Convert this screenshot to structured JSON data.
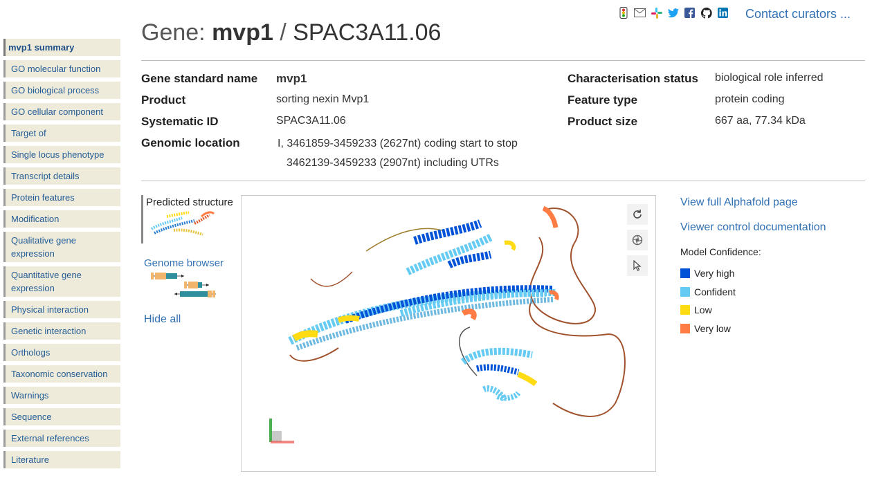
{
  "header": {
    "contact_label": "Contact curators ...",
    "social_icons": [
      "traffic-light-icon",
      "email-icon",
      "slack-icon",
      "twitter-icon",
      "facebook-icon",
      "github-icon",
      "linkedin-icon"
    ]
  },
  "title": {
    "prefix": "Gene: ",
    "gene_name": "mvp1",
    "separator": " / ",
    "systematic_id": "SPAC3A11.06"
  },
  "sidebar": {
    "items": [
      {
        "label": "mvp1 summary",
        "active": true
      },
      {
        "label": "GO molecular function"
      },
      {
        "label": "GO biological process"
      },
      {
        "label": "GO cellular component"
      },
      {
        "label": "Target of"
      },
      {
        "label": "Single locus phenotype"
      },
      {
        "label": "Transcript details"
      },
      {
        "label": "Protein features"
      },
      {
        "label": "Modification"
      },
      {
        "label": "Qualitative gene expression"
      },
      {
        "label": "Quantitative gene expression"
      },
      {
        "label": "Physical interaction"
      },
      {
        "label": "Genetic interaction"
      },
      {
        "label": "Orthologs"
      },
      {
        "label": "Taxonomic conservation"
      },
      {
        "label": "Warnings"
      },
      {
        "label": "Sequence"
      },
      {
        "label": "External references"
      },
      {
        "label": "Literature"
      }
    ]
  },
  "info": {
    "left": [
      {
        "label": "Gene standard name",
        "value": "mvp1"
      },
      {
        "label": "Product",
        "value": "sorting nexin Mvp1"
      },
      {
        "label": "Systematic ID",
        "value": "SPAC3A11.06"
      },
      {
        "label": "Genomic location",
        "value": "I, 3461859-3459233 (2627nt) coding start to stop",
        "value2": "3462139-3459233 (2907nt) including UTRs"
      }
    ],
    "right": [
      {
        "label": "Characterisation status",
        "value": "biological role inferred"
      },
      {
        "label": "Feature type",
        "value": "protein coding"
      },
      {
        "label": "Product size",
        "value": "667 aa, 77.34 kDa"
      }
    ]
  },
  "panel": {
    "predicted_structure_label": "Predicted structure",
    "genome_browser_label": "Genome browser",
    "hide_all_label": "Hide all"
  },
  "viewer": {
    "controls": [
      "rotate-icon",
      "camera-icon",
      "pointer-icon"
    ]
  },
  "alphafold": {
    "full_page_link": "View full Alphafold page",
    "docs_link": "Viewer control documentation",
    "confidence_title": "Model Confidence:",
    "legend": [
      {
        "label": "Very high",
        "color": "#0053d6"
      },
      {
        "label": "Confident",
        "color": "#65cbf3"
      },
      {
        "label": "Low",
        "color": "#ffdb13"
      },
      {
        "label": "Very low",
        "color": "#ff7d45"
      }
    ]
  }
}
